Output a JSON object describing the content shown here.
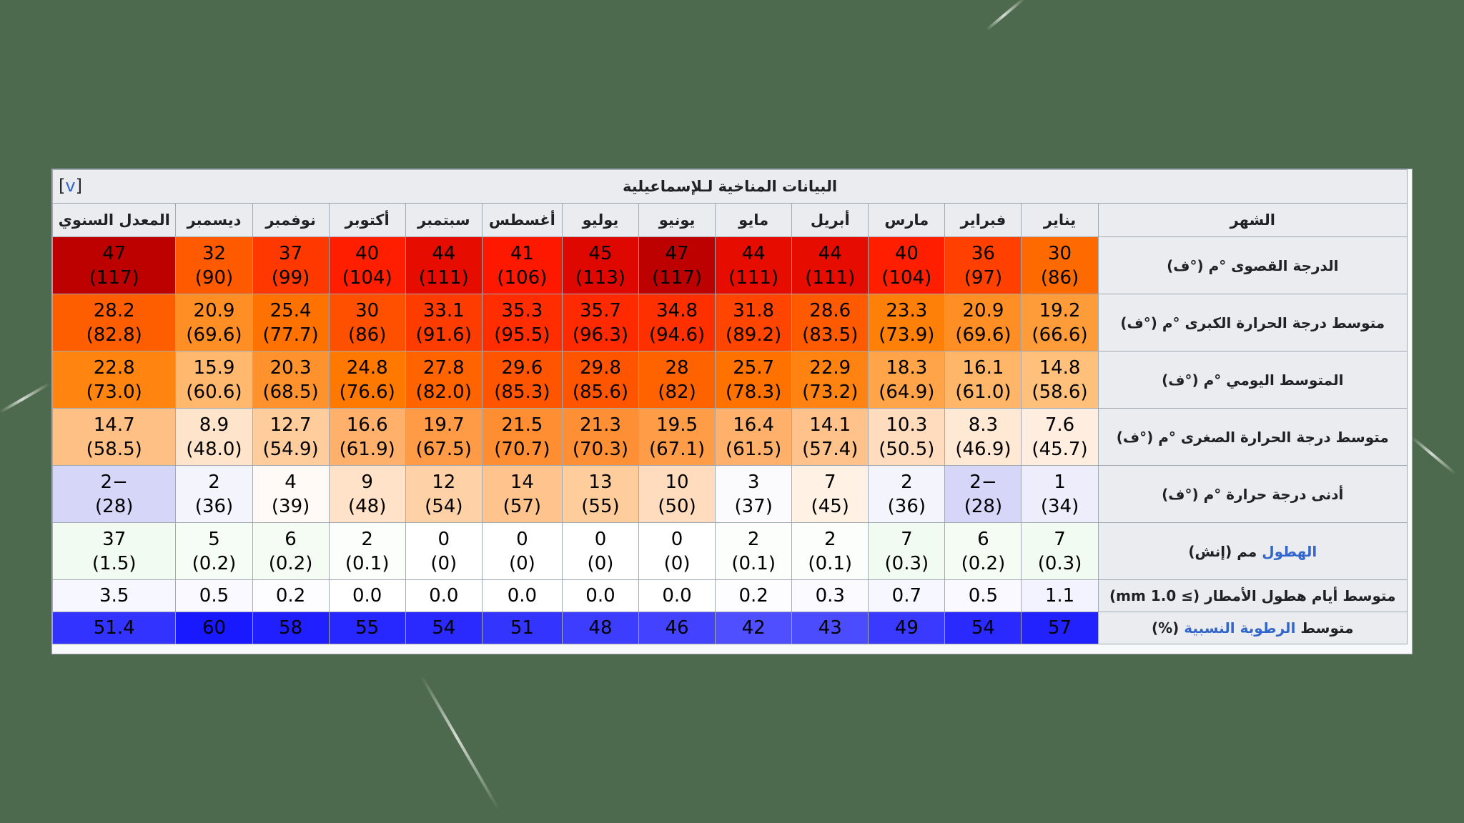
{
  "title": "البيانات المناخية لـلإسماعيلية",
  "view_link": "v",
  "header_label": "الشهر",
  "months": [
    "يناير",
    "فبراير",
    "مارس",
    "أبريل",
    "مايو",
    "يونيو",
    "يوليو",
    "أغسطس",
    "سبتمبر",
    "أكتوبر",
    "نوفمبر",
    "ديسمبر",
    "المعدل السنوي"
  ],
  "rows": [
    {
      "label": "الدرجة القصوى °م (°ف)",
      "cells": [
        {
          "a": "30",
          "b": "(86)",
          "bg": "#ff6a00"
        },
        {
          "a": "36",
          "b": "(97)",
          "bg": "#ff4000"
        },
        {
          "a": "40",
          "b": "(104)",
          "bg": "#ff1f00"
        },
        {
          "a": "44",
          "b": "(111)",
          "bg": "#e70c00"
        },
        {
          "a": "44",
          "b": "(111)",
          "bg": "#e70c00"
        },
        {
          "a": "47",
          "b": "(117)",
          "bg": "#bd0000"
        },
        {
          "a": "45",
          "b": "(113)",
          "bg": "#df0800"
        },
        {
          "a": "41",
          "b": "(106)",
          "bg": "#ff1800"
        },
        {
          "a": "44",
          "b": "(111)",
          "bg": "#e70c00"
        },
        {
          "a": "40",
          "b": "(104)",
          "bg": "#ff1f00"
        },
        {
          "a": "37",
          "b": "(99)",
          "bg": "#ff3800"
        },
        {
          "a": "32",
          "b": "(90)",
          "bg": "#ff5a00"
        },
        {
          "a": "47",
          "b": "(117)",
          "bg": "#bd0000"
        }
      ]
    },
    {
      "label": "متوسط درجة الحرارة الكبرى °م (°ف)",
      "cells": [
        {
          "a": "19.2",
          "b": "(66.6)",
          "bg": "#ff9c3a"
        },
        {
          "a": "20.9",
          "b": "(69.6)",
          "bg": "#ff8f24"
        },
        {
          "a": "23.3",
          "b": "(73.9)",
          "bg": "#ff8008"
        },
        {
          "a": "28.6",
          "b": "(83.5)",
          "bg": "#ff5a00"
        },
        {
          "a": "31.8",
          "b": "(89.2)",
          "bg": "#ff4500"
        },
        {
          "a": "34.8",
          "b": "(94.6)",
          "bg": "#ff3000"
        },
        {
          "a": "35.7",
          "b": "(96.3)",
          "bg": "#ff2a00"
        },
        {
          "a": "35.3",
          "b": "(95.5)",
          "bg": "#ff2d00"
        },
        {
          "a": "33.1",
          "b": "(91.6)",
          "bg": "#ff3c00"
        },
        {
          "a": "30",
          "b": "(86)",
          "bg": "#ff5000"
        },
        {
          "a": "25.4",
          "b": "(77.7)",
          "bg": "#ff7200"
        },
        {
          "a": "20.9",
          "b": "(69.6)",
          "bg": "#ff8f24"
        },
        {
          "a": "28.2",
          "b": "(82.8)",
          "bg": "#ff5e00"
        }
      ]
    },
    {
      "label": "المتوسط اليومي °م (°ف)",
      "cells": [
        {
          "a": "14.8",
          "b": "(58.6)",
          "bg": "#ffc07c"
        },
        {
          "a": "16.1",
          "b": "(61.0)",
          "bg": "#ffb668"
        },
        {
          "a": "18.3",
          "b": "(64.9)",
          "bg": "#ffa449"
        },
        {
          "a": "22.9",
          "b": "(73.2)",
          "bg": "#ff8310"
        },
        {
          "a": "25.7",
          "b": "(78.3)",
          "bg": "#ff7200"
        },
        {
          "a": "28",
          "b": "(82)",
          "bg": "#ff6300"
        },
        {
          "a": "29.8",
          "b": "(85.6)",
          "bg": "#ff5400"
        },
        {
          "a": "29.6",
          "b": "(85.3)",
          "bg": "#ff5500"
        },
        {
          "a": "27.8",
          "b": "(82.0)",
          "bg": "#ff6400"
        },
        {
          "a": "24.8",
          "b": "(76.6)",
          "bg": "#ff7800"
        },
        {
          "a": "20.3",
          "b": "(68.5)",
          "bg": "#ff922c"
        },
        {
          "a": "15.9",
          "b": "(60.6)",
          "bg": "#ffb86d"
        },
        {
          "a": "22.8",
          "b": "(73.0)",
          "bg": "#ff8510"
        }
      ]
    },
    {
      "label": "متوسط درجة الحرارة الصغرى °م (°ف)",
      "cells": [
        {
          "a": "7.6",
          "b": "(45.7)",
          "bg": "#ffeedf"
        },
        {
          "a": "8.3",
          "b": "(46.9)",
          "bg": "#ffe8d4"
        },
        {
          "a": "10.3",
          "b": "(50.5)",
          "bg": "#ffdcbd"
        },
        {
          "a": "14.1",
          "b": "(57.4)",
          "bg": "#ffc28a"
        },
        {
          "a": "16.4",
          "b": "(61.5)",
          "bg": "#ffb16c"
        },
        {
          "a": "19.5",
          "b": "(67.1)",
          "bg": "#ff9c48"
        },
        {
          "a": "21.3",
          "b": "(70.3)",
          "bg": "#ff8f34"
        },
        {
          "a": "21.5",
          "b": "(70.7)",
          "bg": "#ff8e32"
        },
        {
          "a": "19.7",
          "b": "(67.5)",
          "bg": "#ff9b46"
        },
        {
          "a": "16.6",
          "b": "(61.9)",
          "bg": "#ffb06a"
        },
        {
          "a": "12.7",
          "b": "(54.9)",
          "bg": "#ffcc9c"
        },
        {
          "a": "8.9",
          "b": "(48.0)",
          "bg": "#ffe4cc"
        },
        {
          "a": "14.7",
          "b": "(58.5)",
          "bg": "#ffc085"
        }
      ]
    },
    {
      "label": "أدنى درجة حرارة °م (°ف)",
      "cells": [
        {
          "a": "1",
          "b": "(34)",
          "bg": "#ededfc"
        },
        {
          "a": "−2",
          "b": "(28)",
          "bg": "#d6d6f8"
        },
        {
          "a": "2",
          "b": "(36)",
          "bg": "#f4f4fd"
        },
        {
          "a": "7",
          "b": "(45)",
          "bg": "#fff1e4"
        },
        {
          "a": "3",
          "b": "(37)",
          "bg": "#fbfbfe"
        },
        {
          "a": "10",
          "b": "(50)",
          "bg": "#ffdcbd"
        },
        {
          "a": "13",
          "b": "(55)",
          "bg": "#ffcc9c"
        },
        {
          "a": "14",
          "b": "(57)",
          "bg": "#ffc48e"
        },
        {
          "a": "12",
          "b": "(54)",
          "bg": "#ffd1a6"
        },
        {
          "a": "9",
          "b": "(48)",
          "bg": "#ffe2c8"
        },
        {
          "a": "4",
          "b": "(39)",
          "bg": "#fffaf6"
        },
        {
          "a": "2",
          "b": "(36)",
          "bg": "#f4f4fd"
        },
        {
          "a": "−2",
          "b": "(28)",
          "bg": "#d6d6f8"
        }
      ]
    },
    {
      "label": "الهطول مم (إنش)",
      "label_link": "الهطول",
      "label_rest": " مم (إنش)",
      "cells": [
        {
          "a": "7",
          "b": "(0.3)",
          "bg": "#f2fbf2"
        },
        {
          "a": "6",
          "b": "(0.2)",
          "bg": "#f4fcf4"
        },
        {
          "a": "7",
          "b": "(0.3)",
          "bg": "#f2fbf2"
        },
        {
          "a": "2",
          "b": "(0.1)",
          "bg": "#fcfefc"
        },
        {
          "a": "2",
          "b": "(0.1)",
          "bg": "#fcfefc"
        },
        {
          "a": "0",
          "b": "(0)",
          "bg": "#ffffff"
        },
        {
          "a": "0",
          "b": "(0)",
          "bg": "#ffffff"
        },
        {
          "a": "0",
          "b": "(0)",
          "bg": "#ffffff"
        },
        {
          "a": "0",
          "b": "(0)",
          "bg": "#ffffff"
        },
        {
          "a": "2",
          "b": "(0.1)",
          "bg": "#fcfefc"
        },
        {
          "a": "6",
          "b": "(0.2)",
          "bg": "#f4fcf4"
        },
        {
          "a": "5",
          "b": "(0.2)",
          "bg": "#f6fcf6"
        },
        {
          "a": "37",
          "b": "(1.5)",
          "bg": "#f2fbf2"
        }
      ]
    },
    {
      "label": "متوسط أيام هطول الأمطار (≥ 1.0 mm)",
      "cells": [
        {
          "a": "1.1",
          "bg": "#f3f3ff"
        },
        {
          "a": "0.5",
          "bg": "#f9f9ff"
        },
        {
          "a": "0.7",
          "bg": "#f7f7ff"
        },
        {
          "a": "0.3",
          "bg": "#fbfbff"
        },
        {
          "a": "0.2",
          "bg": "#fdfdff"
        },
        {
          "a": "0.0",
          "bg": "#ffffff"
        },
        {
          "a": "0.0",
          "bg": "#ffffff"
        },
        {
          "a": "0.0",
          "bg": "#ffffff"
        },
        {
          "a": "0.0",
          "bg": "#ffffff"
        },
        {
          "a": "0.0",
          "bg": "#ffffff"
        },
        {
          "a": "0.2",
          "bg": "#fdfdff"
        },
        {
          "a": "0.5",
          "bg": "#f9f9ff"
        },
        {
          "a": "3.5",
          "bg": "#f7f7ff"
        }
      ]
    },
    {
      "label": "متوسط الرطوبة النسبية (%)",
      "label_pre": "متوسط ",
      "label_link": "الرطوبة النسبية",
      "label_rest": " (%)",
      "cells": [
        {
          "a": "57",
          "bg": "#2222ff"
        },
        {
          "a": "54",
          "bg": "#2a2aff"
        },
        {
          "a": "49",
          "bg": "#3a3aff"
        },
        {
          "a": "43",
          "bg": "#4c4cff"
        },
        {
          "a": "42",
          "bg": "#4f4fff"
        },
        {
          "a": "46",
          "bg": "#4343ff"
        },
        {
          "a": "48",
          "bg": "#3d3dff"
        },
        {
          "a": "51",
          "bg": "#3434ff"
        },
        {
          "a": "54",
          "bg": "#2a2aff"
        },
        {
          "a": "55",
          "bg": "#2727ff"
        },
        {
          "a": "58",
          "bg": "#1f1fff"
        },
        {
          "a": "60",
          "bg": "#1919ff"
        },
        {
          "a": "51.4",
          "bg": "#3333ff"
        }
      ]
    }
  ]
}
